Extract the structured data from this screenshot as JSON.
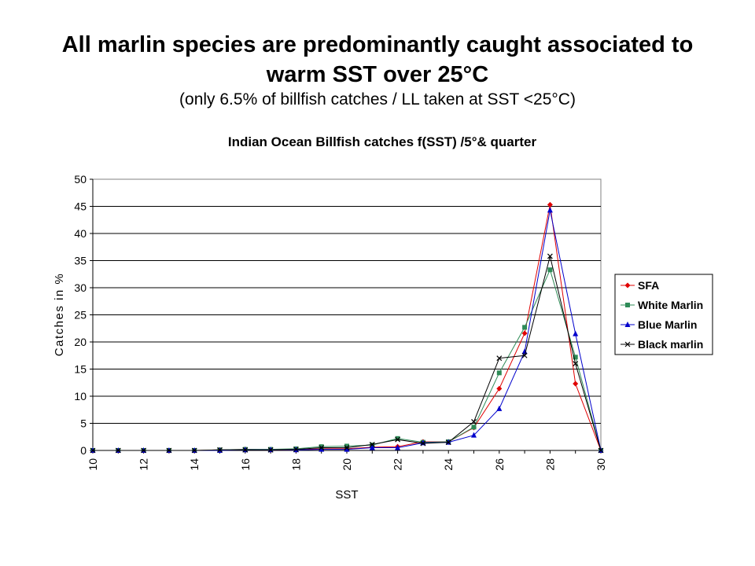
{
  "slide": {
    "title_line1": "All marlin species are predominantly caught associated to",
    "title_line2": "warm SST over 25°C",
    "subtitle": "(only 6.5% of billfish catches / LL taken at SST <25°C)"
  },
  "chart_data": {
    "type": "line",
    "title": "Indian Ocean Billfish catches f(SST) /5°& quarter",
    "xlabel": "SST",
    "ylabel": "Catches in %",
    "xlim": [
      10,
      30
    ],
    "ylim": [
      0,
      50
    ],
    "x_ticks": [
      "10",
      "12",
      "14",
      "16",
      "18",
      "20",
      "22",
      "24",
      "26",
      "28",
      "30"
    ],
    "y_ticks": [
      "0",
      "5",
      "10",
      "15",
      "20",
      "25",
      "30",
      "35",
      "40",
      "45",
      "50"
    ],
    "grid": "horizontal",
    "legend_position": "right",
    "x": [
      10,
      11,
      12,
      13,
      14,
      15,
      16,
      17,
      18,
      19,
      20,
      21,
      22,
      23,
      24,
      25,
      26,
      27,
      28,
      29,
      30
    ],
    "series": [
      {
        "name": "SFA",
        "color": "#e00000",
        "marker": "diamond",
        "values": [
          0,
          0,
          0,
          0,
          0,
          0.1,
          0.2,
          0.1,
          0.1,
          0.3,
          0.3,
          0.6,
          0.7,
          1.6,
          1.6,
          4.2,
          11.4,
          21.6,
          45.3,
          12.3,
          0
        ]
      },
      {
        "name": "White Marlin",
        "color": "#2e8b57",
        "marker": "square",
        "values": [
          0,
          0,
          0,
          0,
          0,
          0.1,
          0.2,
          0.2,
          0.3,
          0.7,
          0.8,
          1.0,
          2.2,
          1.5,
          1.6,
          4.3,
          14.3,
          22.7,
          33.3,
          17.2,
          0
        ]
      },
      {
        "name": "Blue Marlin",
        "color": "#0000cc",
        "marker": "triangle",
        "values": [
          0,
          0,
          0,
          0,
          0,
          0,
          0.1,
          0.1,
          0.1,
          0.2,
          0.2,
          0.5,
          0.5,
          1.4,
          1.5,
          2.8,
          7.7,
          18.2,
          44.3,
          21.5,
          0
        ]
      },
      {
        "name": "Black marlin",
        "color": "#000000",
        "marker": "x",
        "values": [
          0,
          0,
          0,
          0,
          0,
          0.1,
          0.1,
          0.1,
          0.2,
          0.5,
          0.5,
          1.1,
          2.0,
          1.3,
          1.5,
          5.3,
          17.0,
          17.5,
          35.8,
          16.0,
          0
        ]
      }
    ]
  }
}
